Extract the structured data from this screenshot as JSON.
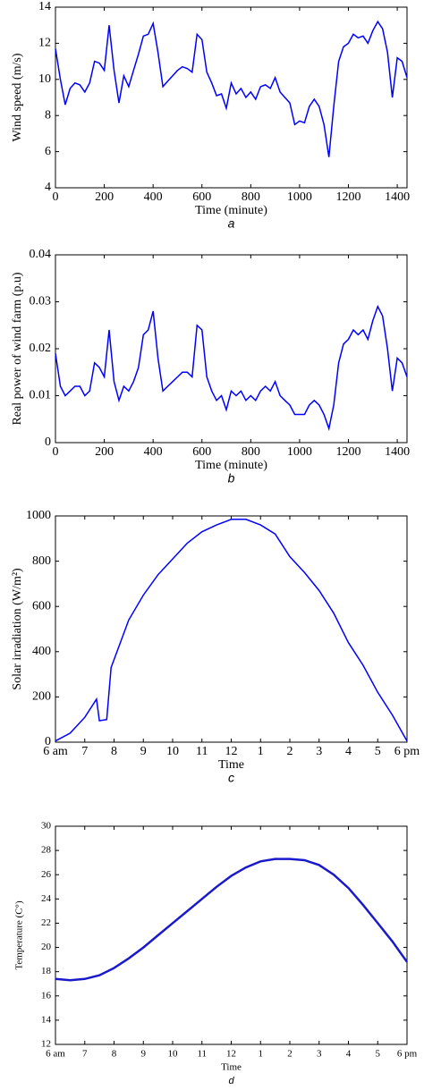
{
  "chart_data": [
    {
      "type": "line",
      "xlabel": "Time (minute)",
      "ylabel": "Wind speed (m/s)",
      "caption": "a",
      "xlim": [
        0,
        1440
      ],
      "xticks": [
        0,
        200,
        400,
        600,
        800,
        1000,
        1200,
        1400
      ],
      "ylim": [
        4,
        14
      ],
      "yticks": [
        4,
        6,
        8,
        10,
        12,
        14
      ],
      "color": "#0000ff",
      "x": [
        0,
        20,
        40,
        60,
        80,
        100,
        120,
        140,
        160,
        180,
        200,
        220,
        240,
        260,
        280,
        300,
        320,
        340,
        360,
        380,
        400,
        420,
        440,
        460,
        480,
        500,
        520,
        540,
        560,
        580,
        600,
        620,
        640,
        660,
        680,
        700,
        720,
        740,
        760,
        780,
        800,
        820,
        840,
        860,
        880,
        900,
        920,
        940,
        960,
        980,
        1000,
        1020,
        1040,
        1060,
        1080,
        1100,
        1120,
        1140,
        1160,
        1180,
        1200,
        1220,
        1240,
        1260,
        1280,
        1300,
        1320,
        1340,
        1360,
        1380,
        1400,
        1420,
        1440
      ],
      "values": [
        11.7,
        10,
        8.6,
        9.5,
        9.8,
        9.7,
        9.3,
        9.8,
        11,
        10.9,
        10.5,
        13,
        10.5,
        8.7,
        10.2,
        9.6,
        10.5,
        11.4,
        12.4,
        12.5,
        13.1,
        11.5,
        9.6,
        9.9,
        10.2,
        10.5,
        10.7,
        10.6,
        10.4,
        12.5,
        12.2,
        10.4,
        9.8,
        9.1,
        9.2,
        8.4,
        9.8,
        9.2,
        9.5,
        9.0,
        9.3,
        8.9,
        9.6,
        9.7,
        9.5,
        10.1,
        9.3,
        9.0,
        8.7,
        7.5,
        7.7,
        7.6,
        8.5,
        8.9,
        8.5,
        7.5,
        5.7,
        8.5,
        11,
        11.8,
        12.0,
        12.5,
        12.3,
        12.4,
        12,
        12.7,
        13.2,
        12.8,
        11.5,
        9.0,
        11.2,
        11,
        10.1
      ]
    },
    {
      "type": "line",
      "xlabel": "Time (minute)",
      "ylabel": "Real power of wind farm (p.u)",
      "caption": "b",
      "xlim": [
        0,
        1440
      ],
      "xticks": [
        0,
        200,
        400,
        600,
        800,
        1000,
        1200,
        1400
      ],
      "ylim": [
        0,
        0.04
      ],
      "yticks": [
        0,
        0.01,
        0.02,
        0.03,
        0.04
      ],
      "color": "#0000ff",
      "x": [
        0,
        20,
        40,
        60,
        80,
        100,
        120,
        140,
        160,
        180,
        200,
        220,
        240,
        260,
        280,
        300,
        320,
        340,
        360,
        380,
        400,
        420,
        440,
        460,
        480,
        500,
        520,
        540,
        560,
        580,
        600,
        620,
        640,
        660,
        680,
        700,
        720,
        740,
        760,
        780,
        800,
        820,
        840,
        860,
        880,
        900,
        920,
        940,
        960,
        980,
        1000,
        1020,
        1040,
        1060,
        1080,
        1100,
        1120,
        1140,
        1160,
        1180,
        1200,
        1220,
        1240,
        1260,
        1280,
        1300,
        1320,
        1340,
        1360,
        1380,
        1400,
        1420,
        1440
      ],
      "values": [
        0.019,
        0.012,
        0.01,
        0.011,
        0.012,
        0.012,
        0.01,
        0.011,
        0.017,
        0.016,
        0.014,
        0.024,
        0.013,
        0.009,
        0.012,
        0.011,
        0.013,
        0.016,
        0.023,
        0.024,
        0.028,
        0.018,
        0.011,
        0.012,
        0.013,
        0.014,
        0.015,
        0.015,
        0.014,
        0.025,
        0.024,
        0.014,
        0.011,
        0.009,
        0.01,
        0.007,
        0.011,
        0.01,
        0.011,
        0.009,
        0.01,
        0.009,
        0.011,
        0.012,
        0.011,
        0.013,
        0.01,
        0.009,
        0.008,
        0.006,
        0.006,
        0.006,
        0.008,
        0.009,
        0.008,
        0.006,
        0.003,
        0.008,
        0.017,
        0.021,
        0.022,
        0.024,
        0.023,
        0.024,
        0.022,
        0.026,
        0.029,
        0.027,
        0.02,
        0.011,
        0.018,
        0.017,
        0.014
      ]
    },
    {
      "type": "line",
      "xlabel": "Time",
      "ylabel": "Solar irradiation (W/m²)",
      "caption": "c",
      "xlim": [
        6,
        18
      ],
      "xticks": [
        {
          "value": 6,
          "label": "6 am"
        },
        7,
        8,
        9,
        10,
        11,
        12,
        {
          "value": 13,
          "label": "1"
        },
        {
          "value": 14,
          "label": "2"
        },
        {
          "value": 15,
          "label": "3"
        },
        {
          "value": 16,
          "label": "4"
        },
        {
          "value": 17,
          "label": "5"
        },
        {
          "value": 18,
          "label": "6 pm"
        }
      ],
      "ylim": [
        0,
        1000
      ],
      "yticks": [
        0,
        200,
        400,
        600,
        800,
        1000
      ],
      "color": "#0000ff",
      "x": [
        6,
        6.5,
        7,
        7.4,
        7.5,
        7.75,
        7.9,
        8.1,
        8.5,
        9,
        9.5,
        10,
        10.5,
        11,
        11.5,
        12,
        12.5,
        13,
        13.5,
        14,
        14.5,
        15,
        15.5,
        16,
        16.5,
        17,
        17.5,
        18
      ],
      "values": [
        5,
        40,
        110,
        190,
        95,
        100,
        330,
        400,
        540,
        650,
        740,
        810,
        880,
        930,
        960,
        985,
        985,
        960,
        920,
        820,
        750,
        670,
        570,
        440,
        340,
        220,
        120,
        5
      ]
    },
    {
      "type": "line",
      "xlabel": "Time",
      "ylabel": "Temperature (C°)",
      "caption": "d",
      "xlim": [
        6,
        18
      ],
      "xticks": [
        {
          "value": 6,
          "label": "6 am"
        },
        7,
        8,
        9,
        10,
        11,
        12,
        {
          "value": 13,
          "label": "1"
        },
        {
          "value": 14,
          "label": "2"
        },
        {
          "value": 15,
          "label": "3"
        },
        {
          "value": 16,
          "label": "4"
        },
        {
          "value": 17,
          "label": "5"
        },
        {
          "value": 18,
          "label": "6 pm"
        }
      ],
      "ylim": [
        12,
        30
      ],
      "yticks": [
        12,
        14,
        16,
        18,
        20,
        22,
        24,
        26,
        28,
        30
      ],
      "color": "#1a1acc",
      "x": [
        6,
        6.5,
        7,
        7.5,
        8,
        8.5,
        9,
        9.5,
        10,
        10.5,
        11,
        11.5,
        12,
        12.5,
        13,
        13.5,
        14,
        14.5,
        15,
        15.5,
        16,
        16.5,
        17,
        17.5,
        18
      ],
      "values": [
        17.4,
        17.3,
        17.4,
        17.7,
        18.3,
        19.1,
        20,
        21,
        22,
        23,
        24,
        25,
        25.9,
        26.6,
        27.1,
        27.3,
        27.3,
        27.2,
        26.8,
        26,
        24.9,
        23.5,
        22,
        20.5,
        18.8
      ]
    }
  ]
}
